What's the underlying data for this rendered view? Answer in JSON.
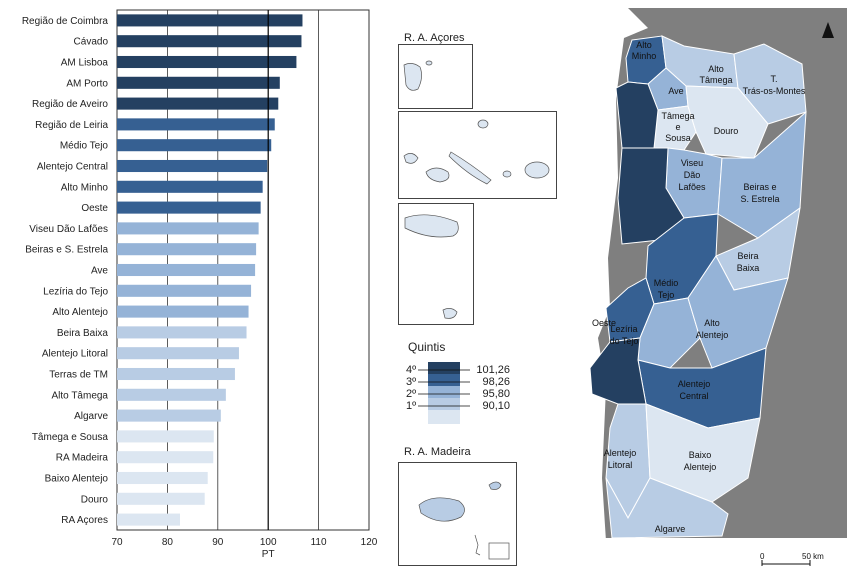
{
  "chart_data": {
    "type": "bar",
    "orientation": "horizontal",
    "categories": [
      "Região de Coimbra",
      "Cávado",
      "AM Lisboa",
      "AM Porto",
      "Região de Aveiro",
      "Região de Leiria",
      "Médio Tejo",
      "Alentejo Central",
      "Alto Minho",
      "Oeste",
      "Viseu Dão Lafões",
      "Beiras e S. Estrela",
      "Ave",
      "Lezíria do Tejo",
      "Alto Alentejo",
      "Beira Baixa",
      "Alentejo Litoral",
      "Terras de TM",
      "Alto Tâmega",
      "Algarve",
      "Tâmega e Sousa",
      "RA Madeira",
      "Baixo Alentejo",
      "Douro",
      "RA Açores"
    ],
    "values": [
      106.8,
      106.6,
      105.6,
      102.3,
      102.0,
      101.3,
      100.6,
      99.8,
      98.9,
      98.5,
      98.1,
      97.6,
      97.4,
      96.6,
      96.1,
      95.7,
      94.2,
      93.4,
      91.6,
      90.6,
      89.2,
      89.1,
      88.0,
      87.4,
      82.5
    ],
    "quintile_class": [
      4,
      4,
      4,
      4,
      4,
      3,
      3,
      3,
      3,
      3,
      2,
      2,
      2,
      2,
      2,
      1,
      1,
      1,
      1,
      1,
      0,
      0,
      0,
      0,
      0
    ],
    "xlabel": "PT",
    "xlim": [
      70,
      120
    ],
    "xticks": [
      70,
      80,
      90,
      100,
      110,
      120
    ],
    "reference_value": 100,
    "grid": true
  },
  "class_colors": [
    "#dce6f1",
    "#b8cce4",
    "#95b3d7",
    "#366092",
    "#244061"
  ],
  "legend": {
    "title": "Quintis",
    "items": [
      {
        "label": "4º",
        "value": "101,26"
      },
      {
        "label": "3º",
        "value": "98,26"
      },
      {
        "label": "2º",
        "value": "95,80"
      },
      {
        "label": "1º",
        "value": "90,10"
      }
    ]
  },
  "insets": {
    "acores_label": "R. A. Açores",
    "madeira_label": "R. A. Madeira"
  },
  "map": {
    "north_arrow": "north-arrow-icon",
    "scale_zero": "0",
    "scale_label": "50 km",
    "regions": [
      {
        "name": "Alto Minho",
        "cls": 3
      },
      {
        "name": "Alto Tâmega",
        "cls": 1
      },
      {
        "name": "T. Trás-os-Montes",
        "cls": 1
      },
      {
        "name": "Ave",
        "cls": 2
      },
      {
        "name": "Tâmega e Sousa",
        "cls": 0
      },
      {
        "name": "Douro",
        "cls": 0
      },
      {
        "name": "Viseu Dão Lafões",
        "cls": 2
      },
      {
        "name": "Beiras e S. Estrela",
        "cls": 2
      },
      {
        "name": "Beira Baixa",
        "cls": 1
      },
      {
        "name": "Médio Tejo",
        "cls": 3
      },
      {
        "name": "Oeste",
        "cls": 3
      },
      {
        "name": "Lezíria do Tejo",
        "cls": 2
      },
      {
        "name": "Alto Alentejo",
        "cls": 2
      },
      {
        "name": "Alentejo Central",
        "cls": 3
      },
      {
        "name": "Alentejo Litoral",
        "cls": 1
      },
      {
        "name": "Baixo Alentejo",
        "cls": 0
      },
      {
        "name": "Algarve",
        "cls": 1
      }
    ]
  }
}
